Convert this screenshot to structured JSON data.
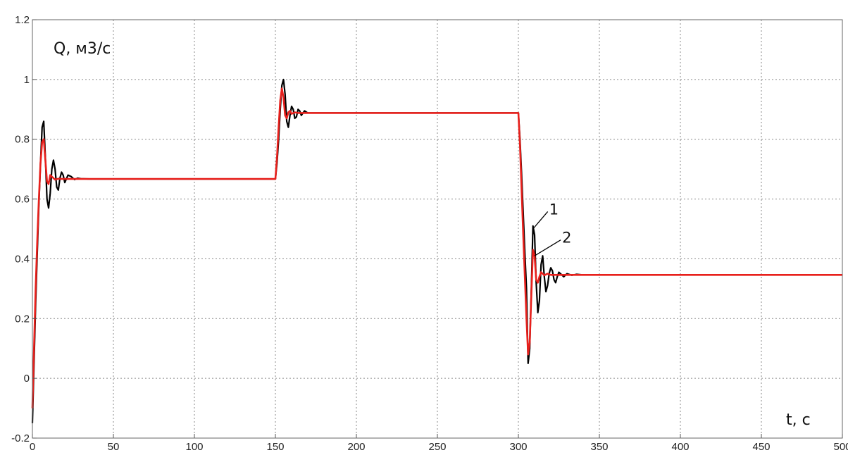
{
  "chart_data": {
    "type": "line",
    "title": "",
    "ylabel": "Q, м3/с",
    "xlabel": "t, с",
    "xlim": [
      0,
      500
    ],
    "ylim": [
      -0.2,
      1.2
    ],
    "x_ticks": [
      0,
      50,
      100,
      150,
      200,
      250,
      300,
      350,
      400,
      450,
      500
    ],
    "y_ticks": [
      -0.2,
      0,
      0.2,
      0.4,
      0.6,
      0.8,
      1,
      1.2
    ],
    "x_tick_labels": [
      "0",
      "50",
      "100",
      "150",
      "200",
      "250",
      "300",
      "350",
      "400",
      "450",
      "500"
    ],
    "y_tick_labels": [
      "-0.2",
      "0",
      "0.2",
      "0.4",
      "0.6",
      "0.8",
      "1",
      "1.2"
    ],
    "grid": true,
    "series": [
      {
        "name": "1",
        "color": "#000000",
        "x": [
          0,
          1,
          2,
          3,
          4,
          5,
          6,
          7,
          8,
          9,
          10,
          11,
          12,
          13,
          14,
          15,
          16,
          17,
          18,
          19,
          20,
          22,
          24,
          26,
          28,
          30,
          35,
          150,
          151,
          152,
          153,
          154,
          155,
          156,
          157,
          158,
          159,
          160,
          161,
          162,
          163,
          164,
          165,
          166,
          168,
          170,
          175,
          300,
          301,
          302,
          303,
          304,
          305,
          306,
          307,
          308,
          309,
          310,
          311,
          312,
          313,
          314,
          315,
          316,
          317,
          318,
          319,
          320,
          321,
          322,
          323,
          324,
          325,
          326,
          328,
          330,
          333,
          336,
          340,
          500
        ],
        "y": [
          -0.15,
          0.05,
          0.25,
          0.42,
          0.58,
          0.72,
          0.84,
          0.86,
          0.74,
          0.6,
          0.57,
          0.62,
          0.7,
          0.73,
          0.7,
          0.64,
          0.63,
          0.67,
          0.69,
          0.68,
          0.655,
          0.68,
          0.675,
          0.665,
          0.67,
          0.668,
          0.667,
          0.667,
          0.72,
          0.8,
          0.9,
          0.98,
          1.0,
          0.95,
          0.86,
          0.84,
          0.88,
          0.91,
          0.9,
          0.87,
          0.875,
          0.9,
          0.895,
          0.88,
          0.895,
          0.888,
          0.888,
          0.888,
          0.8,
          0.68,
          0.55,
          0.42,
          0.3,
          0.05,
          0.1,
          0.3,
          0.51,
          0.48,
          0.32,
          0.22,
          0.26,
          0.38,
          0.41,
          0.34,
          0.29,
          0.31,
          0.35,
          0.37,
          0.36,
          0.33,
          0.32,
          0.34,
          0.355,
          0.35,
          0.34,
          0.35,
          0.345,
          0.348,
          0.346,
          0.346
        ]
      },
      {
        "name": "2",
        "color": "#e8201c",
        "x": [
          0,
          1,
          2,
          3,
          4,
          5,
          6,
          7,
          8,
          9,
          10,
          11,
          12,
          14,
          16,
          18,
          20,
          25,
          150,
          151,
          152,
          153,
          154,
          155,
          156,
          157,
          158,
          159,
          160,
          162,
          164,
          166,
          170,
          300,
          301,
          302,
          303,
          304,
          305,
          306,
          307,
          308,
          309,
          310,
          311,
          312,
          313,
          314,
          316,
          318,
          320,
          325,
          500
        ],
        "y": [
          -0.1,
          0.1,
          0.3,
          0.46,
          0.6,
          0.72,
          0.79,
          0.8,
          0.73,
          0.66,
          0.65,
          0.68,
          0.675,
          0.665,
          0.668,
          0.667,
          0.667,
          0.667,
          0.667,
          0.74,
          0.84,
          0.93,
          0.97,
          0.94,
          0.88,
          0.87,
          0.89,
          0.895,
          0.885,
          0.89,
          0.888,
          0.888,
          0.888,
          0.888,
          0.78,
          0.63,
          0.48,
          0.34,
          0.2,
          0.08,
          0.12,
          0.28,
          0.43,
          0.41,
          0.33,
          0.32,
          0.34,
          0.355,
          0.345,
          0.35,
          0.346,
          0.346,
          0.346
        ]
      }
    ],
    "annotations": [
      {
        "text": "1",
        "x": 319,
        "y": 0.565,
        "arrow_to": [
          309,
          0.5
        ]
      },
      {
        "text": "2",
        "x": 327,
        "y": 0.47,
        "arrow_to": [
          310,
          0.41
        ]
      }
    ]
  }
}
